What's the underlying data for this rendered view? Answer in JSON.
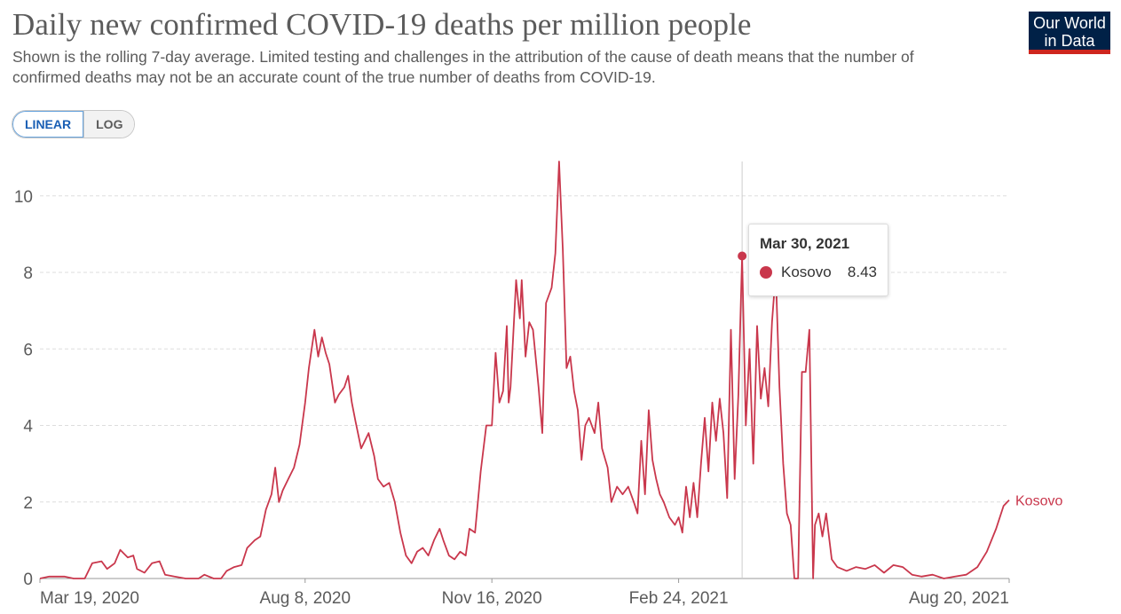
{
  "header": {
    "title": "Daily new confirmed COVID-19 deaths per million people",
    "subtitle": "Shown is the rolling 7-day average. Limited testing and challenges in the attribution of the cause of death means that the number of confirmed deaths may not be an accurate count of the true number of deaths from COVID-19."
  },
  "logo": {
    "line1": "Our World",
    "line2": "in Data"
  },
  "scale_toggle": {
    "linear": "LINEAR",
    "log": "LOG",
    "selected": "LINEAR"
  },
  "tooltip": {
    "date": "Mar 30, 2021",
    "series": "Kosovo",
    "value": "8.43"
  },
  "colors": {
    "series": "#c9374c",
    "grid": "#dddddd",
    "axis_text": "#5b5b5b"
  },
  "chart_data": {
    "type": "line",
    "title": "Daily new confirmed COVID-19 deaths per million people",
    "ylim": [
      0,
      10.9
    ],
    "yticks": [
      0,
      2,
      4,
      6,
      8,
      10
    ],
    "xlim": [
      "2020-03-19",
      "2021-08-20"
    ],
    "xticks": [
      "Mar 19, 2020",
      "Aug 8, 2020",
      "Nov 16, 2020",
      "Feb 24, 2021",
      "Aug 20, 2021"
    ],
    "xtick_dates": [
      "2020-03-19",
      "2020-08-08",
      "2020-11-16",
      "2021-02-24",
      "2021-08-20"
    ],
    "grid": true,
    "legend_placement": "end-of-line",
    "highlight": {
      "date": "2021-03-30",
      "value": 8.43
    },
    "series": [
      {
        "name": "Kosovo",
        "points": [
          [
            "2020-03-19",
            0.0
          ],
          [
            "2020-03-24",
            0.05
          ],
          [
            "2020-04-01",
            0.05
          ],
          [
            "2020-04-06",
            0.0
          ],
          [
            "2020-04-12",
            0.0
          ],
          [
            "2020-04-16",
            0.4
          ],
          [
            "2020-04-21",
            0.45
          ],
          [
            "2020-04-24",
            0.25
          ],
          [
            "2020-04-28",
            0.4
          ],
          [
            "2020-05-01",
            0.75
          ],
          [
            "2020-05-05",
            0.55
          ],
          [
            "2020-05-08",
            0.6
          ],
          [
            "2020-05-10",
            0.25
          ],
          [
            "2020-05-14",
            0.15
          ],
          [
            "2020-05-18",
            0.4
          ],
          [
            "2020-05-22",
            0.45
          ],
          [
            "2020-05-25",
            0.1
          ],
          [
            "2020-05-30",
            0.05
          ],
          [
            "2020-06-05",
            0.0
          ],
          [
            "2020-06-12",
            0.0
          ],
          [
            "2020-06-15",
            0.1
          ],
          [
            "2020-06-20",
            0.0
          ],
          [
            "2020-06-24",
            0.0
          ],
          [
            "2020-06-27",
            0.2
          ],
          [
            "2020-07-01",
            0.3
          ],
          [
            "2020-07-05",
            0.35
          ],
          [
            "2020-07-08",
            0.8
          ],
          [
            "2020-07-12",
            1.0
          ],
          [
            "2020-07-15",
            1.1
          ],
          [
            "2020-07-18",
            1.8
          ],
          [
            "2020-07-21",
            2.2
          ],
          [
            "2020-07-23",
            2.9
          ],
          [
            "2020-07-25",
            2.0
          ],
          [
            "2020-07-27",
            2.3
          ],
          [
            "2020-07-30",
            2.6
          ],
          [
            "2020-08-02",
            2.9
          ],
          [
            "2020-08-05",
            3.5
          ],
          [
            "2020-08-08",
            4.6
          ],
          [
            "2020-08-10",
            5.5
          ],
          [
            "2020-08-13",
            6.5
          ],
          [
            "2020-08-15",
            5.8
          ],
          [
            "2020-08-17",
            6.3
          ],
          [
            "2020-08-19",
            5.9
          ],
          [
            "2020-08-21",
            5.6
          ],
          [
            "2020-08-24",
            4.6
          ],
          [
            "2020-08-26",
            4.8
          ],
          [
            "2020-08-29",
            5.0
          ],
          [
            "2020-08-31",
            5.3
          ],
          [
            "2020-09-02",
            4.6
          ],
          [
            "2020-09-04",
            4.1
          ],
          [
            "2020-09-07",
            3.4
          ],
          [
            "2020-09-09",
            3.6
          ],
          [
            "2020-09-11",
            3.8
          ],
          [
            "2020-09-14",
            3.2
          ],
          [
            "2020-09-16",
            2.6
          ],
          [
            "2020-09-19",
            2.4
          ],
          [
            "2020-09-22",
            2.5
          ],
          [
            "2020-09-25",
            2.0
          ],
          [
            "2020-09-28",
            1.2
          ],
          [
            "2020-10-01",
            0.6
          ],
          [
            "2020-10-04",
            0.4
          ],
          [
            "2020-10-07",
            0.7
          ],
          [
            "2020-10-10",
            0.8
          ],
          [
            "2020-10-13",
            0.6
          ],
          [
            "2020-10-16",
            1.0
          ],
          [
            "2020-10-19",
            1.3
          ],
          [
            "2020-10-21",
            1.0
          ],
          [
            "2020-10-24",
            0.6
          ],
          [
            "2020-10-27",
            0.5
          ],
          [
            "2020-10-30",
            0.7
          ],
          [
            "2020-11-02",
            0.6
          ],
          [
            "2020-11-04",
            1.3
          ],
          [
            "2020-11-07",
            1.2
          ],
          [
            "2020-11-10",
            2.8
          ],
          [
            "2020-11-13",
            4.0
          ],
          [
            "2020-11-16",
            4.0
          ],
          [
            "2020-11-18",
            5.9
          ],
          [
            "2020-11-20",
            4.6
          ],
          [
            "2020-11-22",
            4.9
          ],
          [
            "2020-11-24",
            6.6
          ],
          [
            "2020-11-25",
            4.6
          ],
          [
            "2020-11-26",
            5.0
          ],
          [
            "2020-11-29",
            7.8
          ],
          [
            "2020-12-01",
            6.8
          ],
          [
            "2020-12-02",
            7.8
          ],
          [
            "2020-12-04",
            5.8
          ],
          [
            "2020-12-06",
            6.7
          ],
          [
            "2020-12-08",
            6.5
          ],
          [
            "2020-12-11",
            5.0
          ],
          [
            "2020-12-13",
            3.8
          ],
          [
            "2020-12-15",
            7.2
          ],
          [
            "2020-12-18",
            7.6
          ],
          [
            "2020-12-20",
            8.5
          ],
          [
            "2020-12-22",
            10.9
          ],
          [
            "2020-12-24",
            8.6
          ],
          [
            "2020-12-26",
            5.5
          ],
          [
            "2020-12-28",
            5.8
          ],
          [
            "2020-12-30",
            4.9
          ],
          [
            "2021-01-01",
            4.4
          ],
          [
            "2021-01-03",
            3.1
          ],
          [
            "2021-01-05",
            4.0
          ],
          [
            "2021-01-07",
            4.2
          ],
          [
            "2021-01-10",
            3.8
          ],
          [
            "2021-01-12",
            4.6
          ],
          [
            "2021-01-14",
            3.4
          ],
          [
            "2021-01-17",
            2.9
          ],
          [
            "2021-01-19",
            2.0
          ],
          [
            "2021-01-22",
            2.4
          ],
          [
            "2021-01-25",
            2.2
          ],
          [
            "2021-01-28",
            2.4
          ],
          [
            "2021-01-31",
            2.0
          ],
          [
            "2021-02-02",
            1.7
          ],
          [
            "2021-02-04",
            3.6
          ],
          [
            "2021-02-06",
            2.2
          ],
          [
            "2021-02-08",
            4.4
          ],
          [
            "2021-02-10",
            3.1
          ],
          [
            "2021-02-12",
            2.6
          ],
          [
            "2021-02-14",
            2.2
          ],
          [
            "2021-02-16",
            2.0
          ],
          [
            "2021-02-19",
            1.6
          ],
          [
            "2021-02-22",
            1.4
          ],
          [
            "2021-02-24",
            1.6
          ],
          [
            "2021-02-26",
            1.2
          ],
          [
            "2021-02-28",
            2.4
          ],
          [
            "2021-03-02",
            1.6
          ],
          [
            "2021-03-04",
            2.5
          ],
          [
            "2021-03-06",
            1.6
          ],
          [
            "2021-03-08",
            3.0
          ],
          [
            "2021-03-10",
            4.2
          ],
          [
            "2021-03-12",
            2.8
          ],
          [
            "2021-03-14",
            4.6
          ],
          [
            "2021-03-16",
            3.6
          ],
          [
            "2021-03-18",
            4.7
          ],
          [
            "2021-03-20",
            3.8
          ],
          [
            "2021-03-22",
            2.1
          ],
          [
            "2021-03-24",
            6.5
          ],
          [
            "2021-03-26",
            2.6
          ],
          [
            "2021-03-28",
            4.8
          ],
          [
            "2021-03-30",
            8.43
          ],
          [
            "2021-04-01",
            4.0
          ],
          [
            "2021-04-03",
            6.0
          ],
          [
            "2021-04-05",
            3.0
          ],
          [
            "2021-04-07",
            6.6
          ],
          [
            "2021-04-09",
            4.7
          ],
          [
            "2021-04-11",
            5.5
          ],
          [
            "2021-04-13",
            4.5
          ],
          [
            "2021-04-15",
            6.7
          ],
          [
            "2021-04-17",
            8.0
          ],
          [
            "2021-04-19",
            5.0
          ],
          [
            "2021-04-21",
            3.0
          ],
          [
            "2021-04-23",
            1.7
          ],
          [
            "2021-04-25",
            1.4
          ],
          [
            "2021-04-27",
            0.0
          ],
          [
            "2021-04-29",
            0.0
          ],
          [
            "2021-05-01",
            5.4
          ],
          [
            "2021-05-03",
            5.4
          ],
          [
            "2021-05-05",
            6.5
          ],
          [
            "2021-05-07",
            0.0
          ],
          [
            "2021-05-08",
            1.4
          ],
          [
            "2021-05-10",
            1.7
          ],
          [
            "2021-05-12",
            1.1
          ],
          [
            "2021-05-14",
            1.7
          ],
          [
            "2021-05-17",
            0.5
          ],
          [
            "2021-05-20",
            0.3
          ],
          [
            "2021-05-25",
            0.2
          ],
          [
            "2021-05-30",
            0.3
          ],
          [
            "2021-06-04",
            0.25
          ],
          [
            "2021-06-09",
            0.35
          ],
          [
            "2021-06-14",
            0.15
          ],
          [
            "2021-06-19",
            0.35
          ],
          [
            "2021-06-24",
            0.3
          ],
          [
            "2021-06-29",
            0.1
          ],
          [
            "2021-07-04",
            0.05
          ],
          [
            "2021-07-10",
            0.1
          ],
          [
            "2021-07-16",
            0.0
          ],
          [
            "2021-07-22",
            0.05
          ],
          [
            "2021-07-28",
            0.1
          ],
          [
            "2021-08-03",
            0.3
          ],
          [
            "2021-08-08",
            0.7
          ],
          [
            "2021-08-13",
            1.3
          ],
          [
            "2021-08-17",
            1.9
          ],
          [
            "2021-08-20",
            2.05
          ]
        ]
      }
    ]
  }
}
